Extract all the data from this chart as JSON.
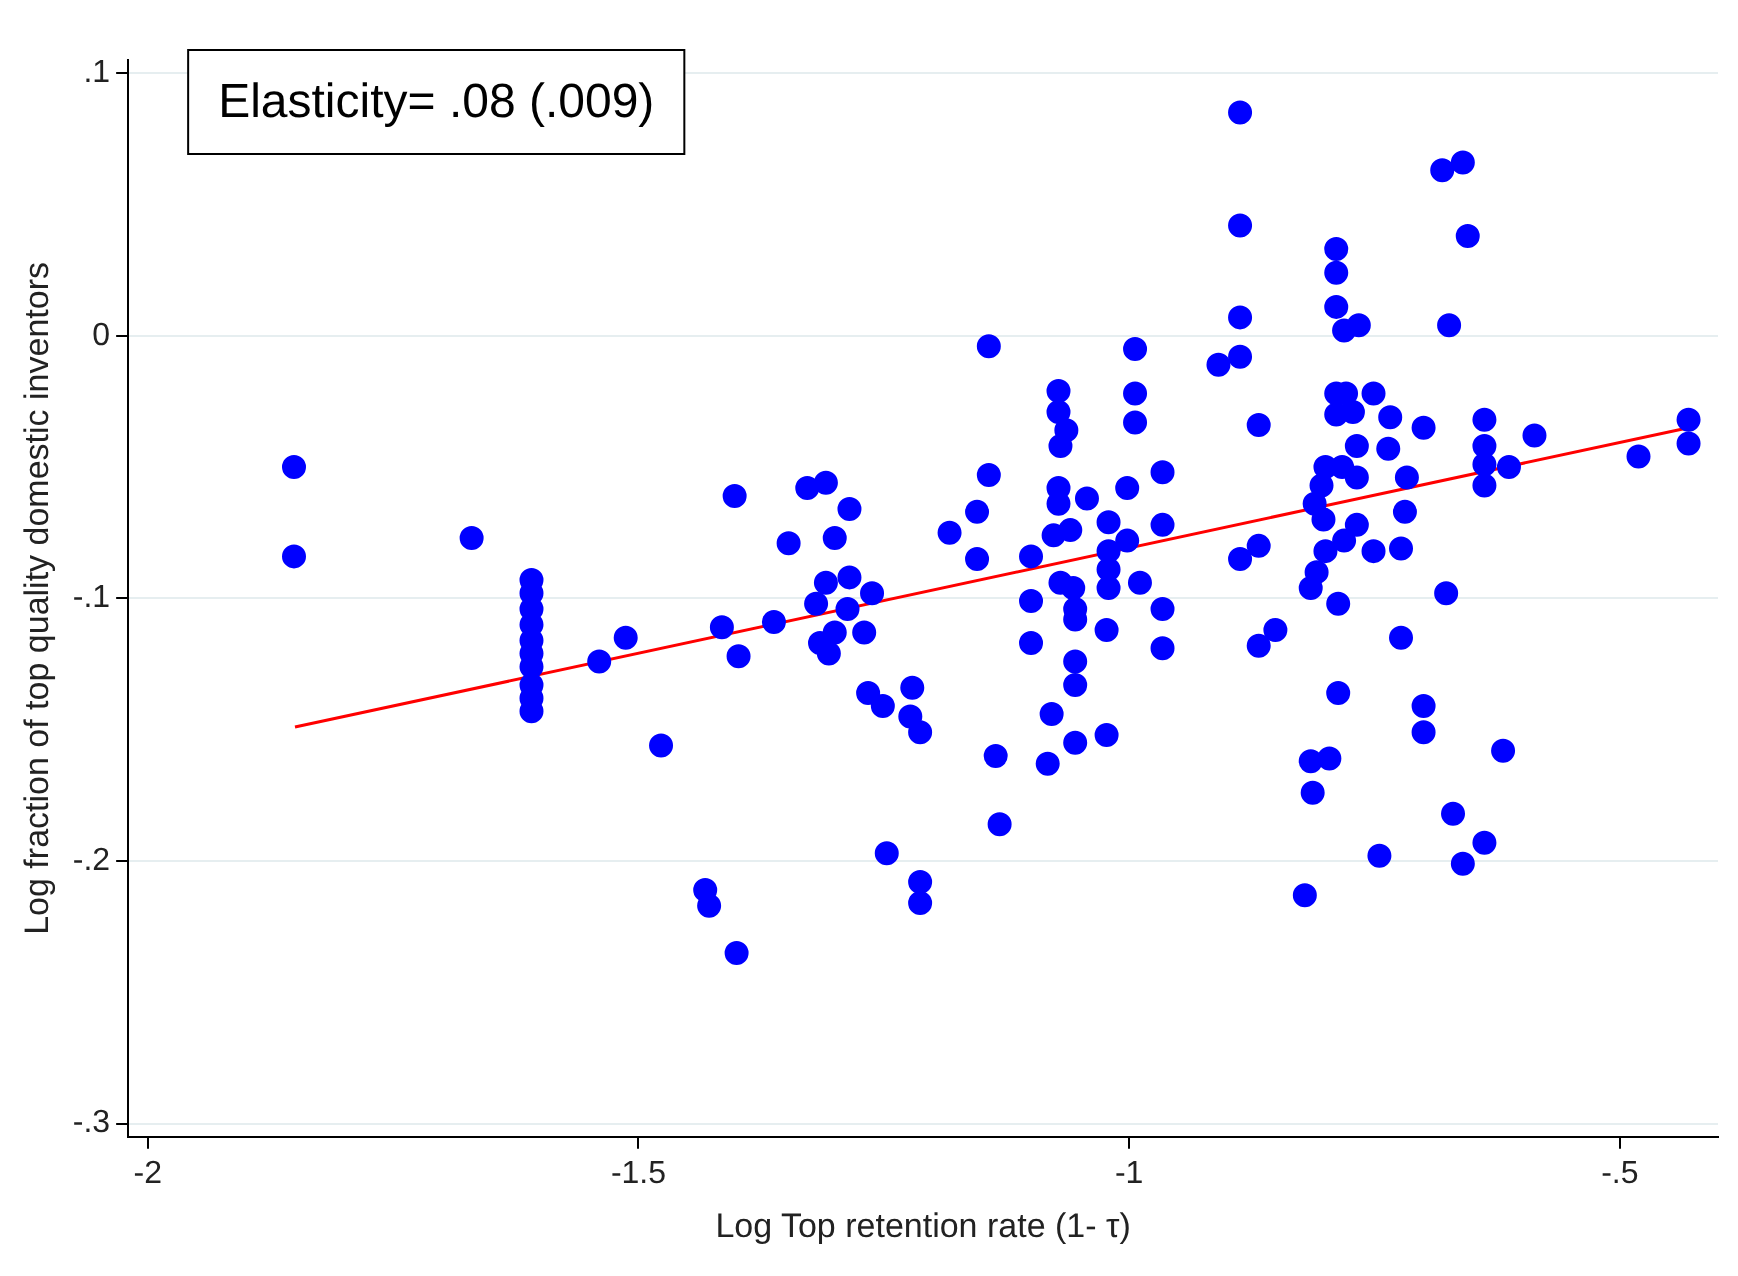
{
  "chart_data": {
    "type": "scatter",
    "xlabel": "Log Top retention rate (1- τ)",
    "ylabel": "Log fraction of top quality domestic inventors",
    "annotations": [
      "Elasticity= .08 (.009)"
    ],
    "xlim": [
      -2.02,
      -0.4
    ],
    "ylim": [
      -0.305,
      0.105
    ],
    "xticks": [
      {
        "value": -2,
        "label": "-2"
      },
      {
        "value": -1.5,
        "label": "-1.5"
      },
      {
        "value": -1,
        "label": "-1"
      },
      {
        "value": -0.5,
        "label": "-.5"
      }
    ],
    "yticks": [
      {
        "value": -0.3,
        "label": "-.3"
      },
      {
        "value": -0.2,
        "label": "-.2"
      },
      {
        "value": -0.1,
        "label": "-.1"
      },
      0,
      {
        "value": 0.1,
        "label": ".1"
      }
    ],
    "grid": "y",
    "legend": false,
    "marker": "circle",
    "series": [
      {
        "color": "#0000ff",
        "x": [
          -1.851,
          -1.851,
          -1.67,
          -1.609,
          -1.609,
          -1.609,
          -1.609,
          -1.609,
          -1.609,
          -1.609,
          -1.609,
          -1.609,
          -1.609,
          -1.54,
          -1.513,
          -1.477,
          -1.432,
          -1.428,
          -1.4,
          -1.402,
          -1.415,
          -1.398,
          -1.143,
          -0.994,
          -0.994,
          -0.994,
          -1.072,
          -1.072,
          -1.064,
          -1.07,
          -1.143,
          -1.155,
          -1.183,
          -1.155,
          -0.966,
          -1.002,
          -1.043,
          -1.072,
          -1.072,
          -1.077,
          -1.06,
          -1.021,
          -0.966,
          -1.1,
          -1.002,
          -1.021,
          -1.021,
          -1.021,
          -1.07,
          -1.057,
          -1.055,
          -1.055,
          -1.1,
          -0.989,
          -0.966,
          -0.966,
          -1.023,
          -1.1,
          -1.055,
          -1.055,
          -1.079,
          -1.055,
          -1.023,
          -1.083,
          -1.136,
          -1.132,
          -1.328,
          -1.309,
          -1.285,
          -1.3,
          -1.347,
          -1.309,
          -1.285,
          -1.262,
          -1.319,
          -1.287,
          -1.362,
          -1.3,
          -1.315,
          -1.306,
          -1.27,
          -1.266,
          -1.251,
          -1.221,
          -1.223,
          -1.213,
          -1.247,
          -1.213,
          -1.213,
          -0.887,
          -0.887,
          -0.887,
          -0.887,
          -0.909,
          -0.868,
          -0.789,
          -0.789,
          -0.789,
          -0.781,
          -0.766,
          -0.681,
          -0.66,
          -0.655,
          -0.674,
          -0.789,
          -0.779,
          -0.751,
          -0.789,
          -0.772,
          -0.734,
          -0.7,
          -0.638,
          -0.587,
          -0.43,
          -0.43,
          -0.481,
          -0.638,
          -0.638,
          -0.613,
          -0.638,
          -0.768,
          -0.736,
          -0.8,
          -0.783,
          -0.804,
          -0.768,
          -0.717,
          -0.811,
          -0.802,
          -0.768,
          -0.719,
          -0.781,
          -0.8,
          -0.751,
          -0.723,
          -0.809,
          -0.815,
          -0.887,
          -0.868,
          -0.787,
          -0.677,
          -0.868,
          -0.851,
          -0.723,
          -0.787,
          -0.7,
          -0.7,
          -0.619,
          -0.815,
          -0.796,
          -0.813,
          -0.67,
          -0.638,
          -0.66,
          -0.745,
          -0.821
        ],
        "values": [
          -0.05,
          -0.084,
          -0.077,
          -0.093,
          -0.098,
          -0.104,
          -0.11,
          -0.116,
          -0.121,
          -0.126,
          -0.133,
          -0.138,
          -0.143,
          -0.124,
          -0.115,
          -0.156,
          -0.211,
          -0.217,
          -0.235,
          -0.061,
          -0.111,
          -0.122,
          -0.004,
          -0.005,
          -0.022,
          -0.033,
          -0.021,
          -0.029,
          -0.036,
          -0.042,
          -0.053,
          -0.067,
          -0.075,
          -0.085,
          -0.052,
          -0.058,
          -0.062,
          -0.058,
          -0.064,
          -0.076,
          -0.074,
          -0.071,
          -0.072,
          -0.084,
          -0.078,
          -0.082,
          -0.089,
          -0.096,
          -0.094,
          -0.096,
          -0.104,
          -0.108,
          -0.101,
          -0.094,
          -0.104,
          -0.119,
          -0.112,
          -0.117,
          -0.124,
          -0.133,
          -0.144,
          -0.155,
          -0.152,
          -0.163,
          -0.16,
          -0.186,
          -0.058,
          -0.056,
          -0.066,
          -0.077,
          -0.079,
          -0.094,
          -0.092,
          -0.098,
          -0.102,
          -0.104,
          -0.109,
          -0.113,
          -0.117,
          -0.121,
          -0.113,
          -0.136,
          -0.141,
          -0.134,
          -0.145,
          -0.151,
          -0.197,
          -0.208,
          -0.216,
          0.085,
          0.042,
          0.007,
          -0.008,
          -0.011,
          -0.034,
          0.033,
          0.024,
          0.011,
          0.002,
          0.004,
          0.063,
          0.066,
          0.038,
          0.004,
          -0.022,
          -0.022,
          -0.022,
          -0.03,
          -0.029,
          -0.031,
          -0.035,
          -0.032,
          -0.038,
          -0.032,
          -0.041,
          -0.046,
          -0.042,
          -0.049,
          -0.05,
          -0.057,
          -0.042,
          -0.043,
          -0.05,
          -0.05,
          -0.057,
          -0.054,
          -0.054,
          -0.064,
          -0.07,
          -0.072,
          -0.067,
          -0.078,
          -0.082,
          -0.082,
          -0.081,
          -0.09,
          -0.096,
          -0.085,
          -0.08,
          -0.102,
          -0.098,
          -0.118,
          -0.112,
          -0.115,
          -0.136,
          -0.141,
          -0.151,
          -0.158,
          -0.162,
          -0.161,
          -0.174,
          -0.182,
          -0.193,
          -0.201,
          -0.198,
          -0.213
        ]
      },
      {
        "type": "line",
        "color": "#ff0000",
        "marker": "none",
        "x": [
          -1.85,
          -0.43
        ],
        "values": [
          -0.149,
          -0.035
        ]
      }
    ]
  }
}
